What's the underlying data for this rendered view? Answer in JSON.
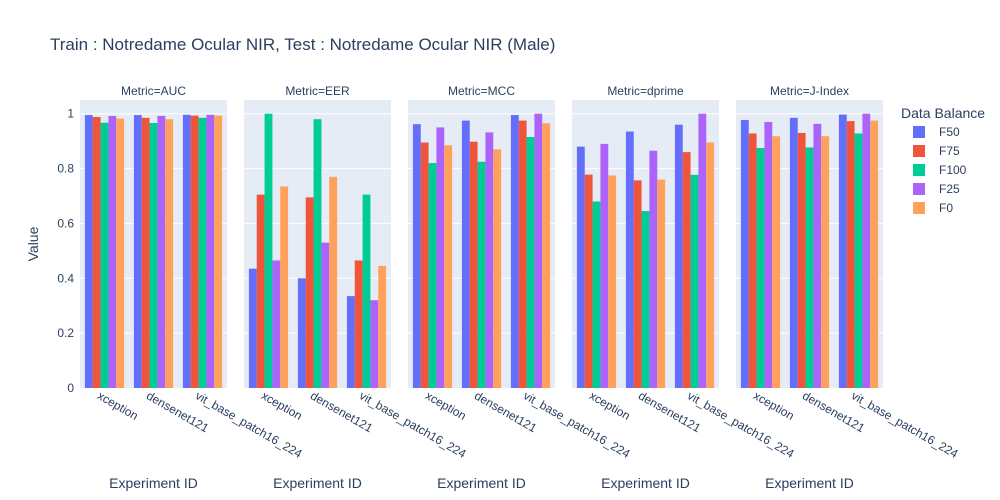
{
  "chart_data": {
    "type": "bar",
    "title": "Train : Notredame Ocular NIR, Test : Notredame Ocular NIR (Male)",
    "ylabel": "Value",
    "xlabel": "Experiment ID",
    "ylim": [
      0,
      1.05
    ],
    "yticks": [
      0,
      0.2,
      0.4,
      0.6,
      0.8,
      1
    ],
    "grid": true,
    "legend_title": "Data Balance",
    "legend_position": "right",
    "categories": [
      "xception",
      "densenet121",
      "vit_base_patch16_224"
    ],
    "series_order": [
      "F50",
      "F75",
      "F100",
      "F25",
      "F0"
    ],
    "colors": {
      "F50": "#636efa",
      "F75": "#ef553b",
      "F100": "#00cc96",
      "F25": "#ab63fa",
      "F0": "#ffa15a"
    },
    "facets": [
      {
        "title": "Metric=AUC",
        "values": {
          "F50": [
            0.995,
            0.995,
            0.996
          ],
          "F75": [
            0.988,
            0.985,
            0.993
          ],
          "F100": [
            0.967,
            0.966,
            0.985
          ],
          "F25": [
            0.992,
            0.992,
            0.996
          ],
          "F0": [
            0.982,
            0.98,
            0.993
          ]
        }
      },
      {
        "title": "Metric=EER",
        "values": {
          "F50": [
            0.435,
            0.4,
            0.335
          ],
          "F75": [
            0.705,
            0.695,
            0.465
          ],
          "F100": [
            1.0,
            0.98,
            0.705
          ],
          "F25": [
            0.465,
            0.53,
            0.32
          ],
          "F0": [
            0.735,
            0.77,
            0.445
          ]
        }
      },
      {
        "title": "Metric=MCC",
        "values": {
          "F50": [
            0.962,
            0.975,
            0.995
          ],
          "F75": [
            0.895,
            0.898,
            0.975
          ],
          "F100": [
            0.82,
            0.825,
            0.915
          ],
          "F25": [
            0.95,
            0.932,
            1.0
          ],
          "F0": [
            0.885,
            0.87,
            0.965
          ]
        }
      },
      {
        "title": "Metric=dprime",
        "values": {
          "F50": [
            0.88,
            0.935,
            0.96
          ],
          "F75": [
            0.778,
            0.757,
            0.86
          ],
          "F100": [
            0.68,
            0.645,
            0.777
          ],
          "F25": [
            0.89,
            0.865,
            1.0
          ],
          "F0": [
            0.775,
            0.76,
            0.895
          ]
        }
      },
      {
        "title": "Metric=J-Index",
        "values": {
          "F50": [
            0.977,
            0.985,
            0.997
          ],
          "F75": [
            0.928,
            0.93,
            0.973
          ],
          "F100": [
            0.875,
            0.877,
            0.928
          ],
          "F25": [
            0.97,
            0.963,
            1.0
          ],
          "F0": [
            0.918,
            0.918,
            0.975
          ]
        }
      }
    ]
  }
}
